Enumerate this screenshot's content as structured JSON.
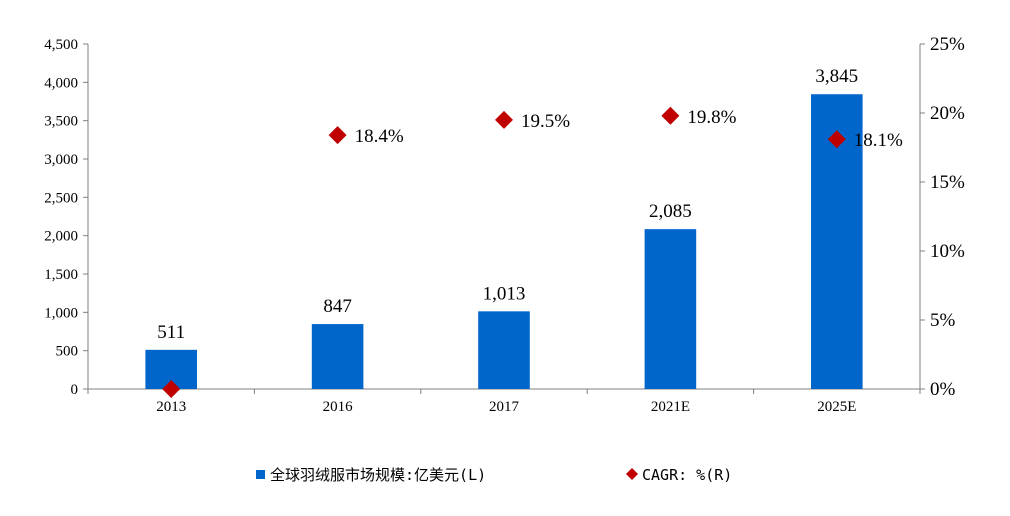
{
  "chart_data": {
    "type": "bar",
    "categories": [
      "2013",
      "2016",
      "2017",
      "2021E",
      "2025E"
    ],
    "series": [
      {
        "name": "全球羽绒服市场规模:亿美元(L)",
        "type": "bar",
        "axis": "left",
        "values": [
          511,
          847,
          1013,
          2085,
          3845
        ],
        "labels": [
          "511",
          "847",
          "1,013",
          "2,085",
          "3,845"
        ],
        "color": "#0066CC"
      },
      {
        "name": "CAGR: %(R)",
        "type": "scatter",
        "axis": "right",
        "values": [
          0,
          18.4,
          19.5,
          19.8,
          18.1
        ],
        "labels": [
          "",
          "18.4%",
          "19.5%",
          "19.8%",
          "18.1%"
        ],
        "color": "#C00000"
      }
    ],
    "y_left": {
      "lim": [
        0,
        4500
      ],
      "ticks": [
        0,
        500,
        1000,
        1500,
        2000,
        2500,
        3000,
        3500,
        4000,
        4500
      ],
      "tick_labels": [
        "0",
        "500",
        "1,000",
        "1,500",
        "2,000",
        "2,500",
        "3,000",
        "3,500",
        "4,000",
        "4,500"
      ]
    },
    "y_right": {
      "lim": [
        0,
        25
      ],
      "ticks": [
        0,
        5,
        10,
        15,
        20,
        25
      ],
      "tick_labels": [
        "0%",
        "5%",
        "10%",
        "15%",
        "20%",
        "25%"
      ]
    },
    "title": "",
    "xlabel": "",
    "ylabel": "",
    "grid": false,
    "legend": {
      "position": "bottom",
      "items": [
        {
          "label": "全球羽绒服市场规模:亿美元(L)",
          "marker": "square",
          "color": "#0066CC"
        },
        {
          "label": "CAGR: %(R)",
          "marker": "diamond",
          "color": "#C00000"
        }
      ]
    }
  }
}
